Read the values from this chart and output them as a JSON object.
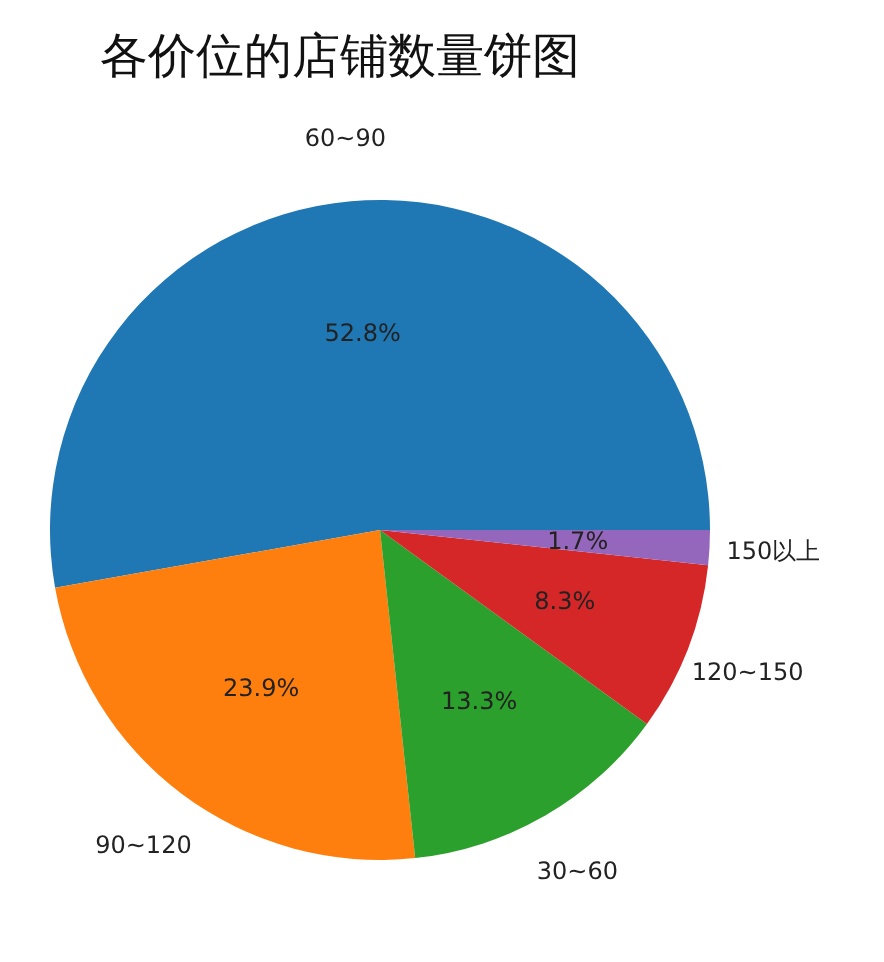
{
  "chart_data": {
    "type": "pie",
    "title": "各价位的店铺数量饼图",
    "categories": [
      "60~90",
      "90~120",
      "30~60",
      "120~150",
      "150以上"
    ],
    "values": [
      52.8,
      23.9,
      13.3,
      8.3,
      1.7
    ],
    "colors": [
      "#1f77b4",
      "#ff7f0e",
      "#2ca02c",
      "#d62728",
      "#9467bd"
    ],
    "value_labels": [
      "52.8%",
      "23.9%",
      "13.3%",
      "8.3%",
      "1.7%"
    ],
    "legend": false
  }
}
